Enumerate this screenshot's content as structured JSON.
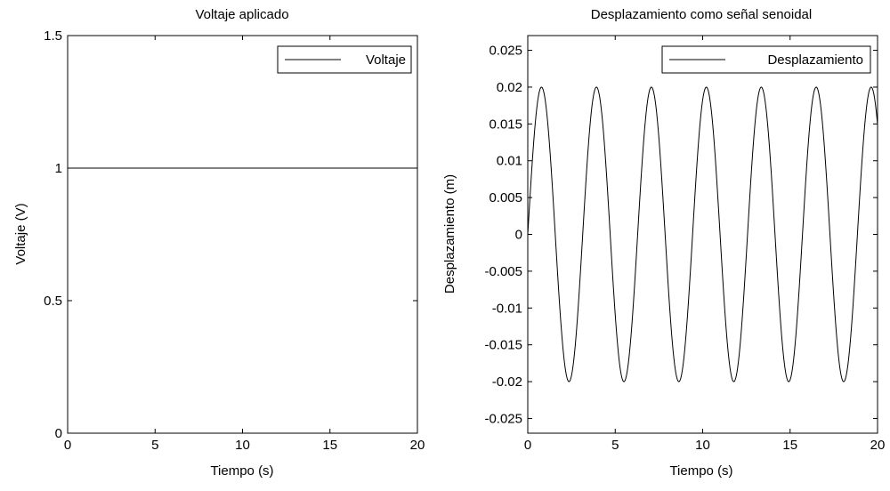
{
  "chart_data": [
    {
      "type": "line",
      "title": "Voltaje aplicado",
      "xlabel": "Tiempo (s)",
      "ylabel": "Voltaje (V)",
      "xlim": [
        0,
        20
      ],
      "ylim": [
        0,
        1.5
      ],
      "xticks": [
        "0",
        "5",
        "10",
        "15",
        "20"
      ],
      "yticks": [
        "0",
        "0.5",
        "1",
        "1.5"
      ],
      "grid": false,
      "legend_position": "top-right",
      "series": [
        {
          "name": "Voltaje",
          "x": [
            0,
            20
          ],
          "y": [
            1,
            1
          ]
        }
      ]
    },
    {
      "type": "line",
      "title": "Desplazamiento como señal senoidal",
      "xlabel": "Tiempo (s)",
      "ylabel": "Desplazamiento (m)",
      "xlim": [
        0,
        20
      ],
      "ylim": [
        -0.027,
        0.027
      ],
      "xticks": [
        "0",
        "5",
        "10",
        "15",
        "20"
      ],
      "yticks": [
        "-0.025",
        "-0.02",
        "-0.015",
        "-0.01",
        "-0.005",
        "0",
        "0.005",
        "0.01",
        "0.015",
        "0.02",
        "0.025"
      ],
      "grid": false,
      "legend_position": "top-right",
      "series": [
        {
          "name": "Desplazamiento",
          "function": "sine",
          "amplitude": 0.02,
          "frequency_rad_s": 2,
          "x_range": [
            0,
            20
          ]
        }
      ]
    }
  ]
}
